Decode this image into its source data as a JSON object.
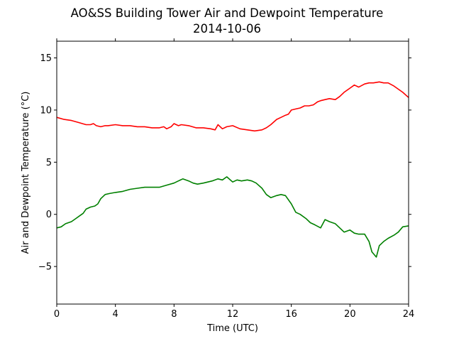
{
  "chart_data": {
    "type": "line",
    "title": "AO&SS Building Tower Air and Dewpoint Temperature",
    "subtitle": "2014-10-06",
    "xlabel": "Time (UTC)",
    "ylabel": "Air and Dewpoint Temperature (°C)",
    "xlim": [
      0,
      24
    ],
    "ylim": [
      -8.6,
      16.6
    ],
    "xticks": [
      0,
      4,
      8,
      12,
      16,
      20,
      24
    ],
    "yticks": [
      -5,
      0,
      5,
      10,
      15
    ],
    "grid": false,
    "series": [
      {
        "color": "#ff0000",
        "x": [
          0,
          0.5,
          1,
          1.5,
          2,
          2.3,
          2.5,
          2.7,
          3,
          3.3,
          3.5,
          4,
          4.5,
          5,
          5.5,
          6,
          6.5,
          7,
          7.3,
          7.5,
          7.8,
          8,
          8.3,
          8.5,
          9,
          9.5,
          10,
          10.5,
          10.8,
          11,
          11.3,
          11.6,
          12,
          12.5,
          13,
          13.5,
          14,
          14.3,
          14.6,
          15,
          15.3,
          15.6,
          15.8,
          16,
          16.3,
          16.6,
          16.9,
          17.2,
          17.5,
          17.8,
          18,
          18.3,
          18.6,
          19,
          19.3,
          19.6,
          20,
          20.3,
          20.6,
          21,
          21.3,
          21.6,
          22,
          22.3,
          22.6,
          23,
          23.3,
          23.6,
          24
        ],
        "y": [
          9.3,
          9.1,
          9.0,
          8.8,
          8.6,
          8.6,
          8.7,
          8.5,
          8.4,
          8.5,
          8.5,
          8.6,
          8.5,
          8.5,
          8.4,
          8.4,
          8.3,
          8.3,
          8.4,
          8.2,
          8.4,
          8.7,
          8.5,
          8.6,
          8.5,
          8.3,
          8.3,
          8.2,
          8.1,
          8.6,
          8.2,
          8.4,
          8.5,
          8.2,
          8.1,
          8.0,
          8.1,
          8.3,
          8.6,
          9.1,
          9.3,
          9.5,
          9.6,
          10.0,
          10.1,
          10.2,
          10.4,
          10.4,
          10.5,
          10.8,
          10.9,
          11.0,
          11.1,
          11.0,
          11.3,
          11.7,
          12.1,
          12.4,
          12.2,
          12.5,
          12.6,
          12.6,
          12.7,
          12.6,
          12.6,
          12.3,
          12.0,
          11.7,
          11.2
        ]
      },
      {
        "color": "#008000",
        "x": [
          0,
          0.3,
          0.6,
          1,
          1.3,
          1.6,
          1.8,
          2,
          2.3,
          2.6,
          2.8,
          3,
          3.3,
          3.6,
          4,
          4.5,
          5,
          5.5,
          6,
          6.5,
          7,
          7.5,
          8,
          8.3,
          8.6,
          9,
          9.3,
          9.6,
          10,
          10.3,
          10.6,
          11,
          11.3,
          11.6,
          12,
          12.3,
          12.6,
          13,
          13.3,
          13.6,
          14,
          14.3,
          14.6,
          15,
          15.3,
          15.6,
          16,
          16.3,
          16.6,
          17,
          17.3,
          17.6,
          18,
          18.3,
          18.6,
          19,
          19.3,
          19.6,
          20,
          20.3,
          20.6,
          21,
          21.3,
          21.5,
          21.8,
          22,
          22.3,
          22.6,
          23,
          23.3,
          23.6,
          24
        ],
        "y": [
          -1.3,
          -1.2,
          -0.9,
          -0.7,
          -0.4,
          -0.1,
          0.1,
          0.5,
          0.7,
          0.8,
          1.0,
          1.5,
          1.9,
          2.0,
          2.1,
          2.2,
          2.4,
          2.5,
          2.6,
          2.6,
          2.6,
          2.8,
          3.0,
          3.2,
          3.4,
          3.2,
          3.0,
          2.9,
          3.0,
          3.1,
          3.2,
          3.4,
          3.3,
          3.6,
          3.1,
          3.3,
          3.2,
          3.3,
          3.2,
          3.0,
          2.5,
          1.9,
          1.6,
          1.8,
          1.9,
          1.8,
          1.0,
          0.2,
          0.0,
          -0.4,
          -0.8,
          -1.0,
          -1.3,
          -0.5,
          -0.7,
          -0.9,
          -1.3,
          -1.7,
          -1.5,
          -1.8,
          -1.9,
          -1.9,
          -2.6,
          -3.6,
          -4.1,
          -3.0,
          -2.6,
          -2.3,
          -2.0,
          -1.7,
          -1.2,
          -1.1
        ]
      }
    ]
  }
}
